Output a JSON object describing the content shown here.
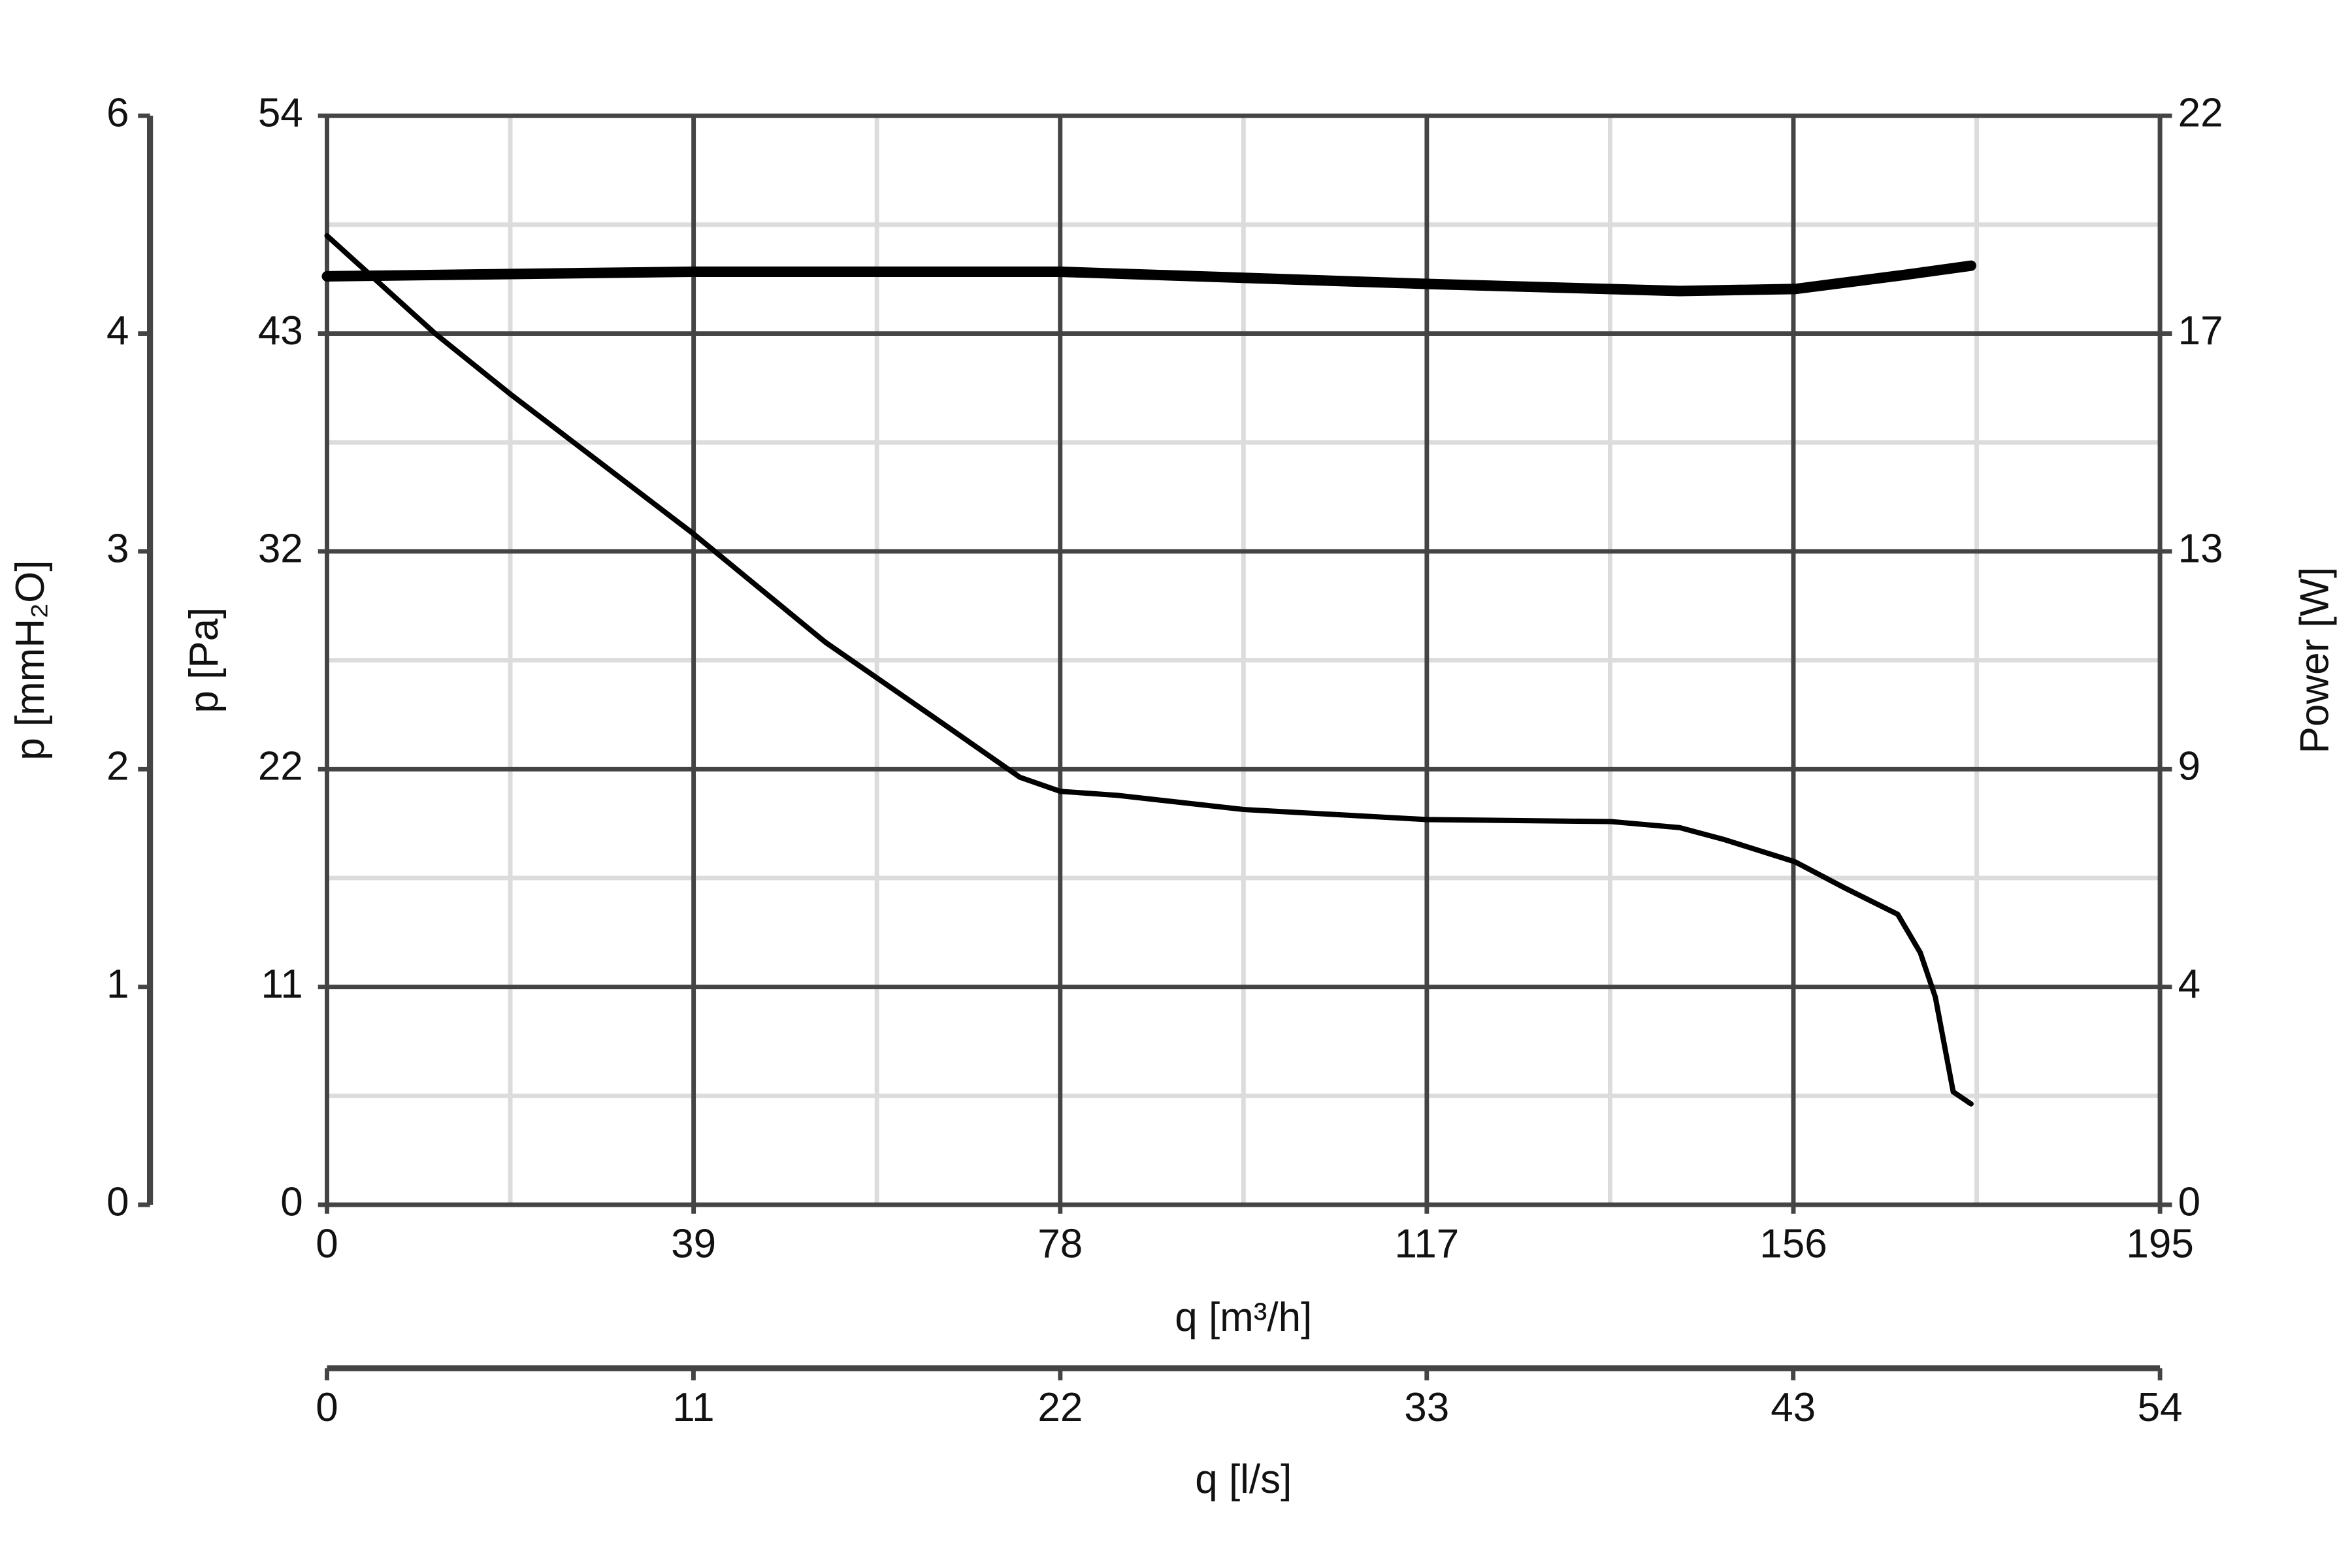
{
  "chart_data": {
    "type": "line",
    "xlabel": "q [m³/h]",
    "x2label": "q [l/s]",
    "ylabel": "p [Pa]",
    "y3label": "p [mmH₂O]",
    "y2label": "Power [W]",
    "xlim": [
      0,
      195
    ],
    "xticks": [
      0,
      39,
      78,
      117,
      156,
      195
    ],
    "x2lim": [
      0,
      54.17
    ],
    "x2ticks": [
      0,
      {
        "value": 10.83,
        "label": "11"
      },
      {
        "value": 21.67,
        "label": "22"
      },
      {
        "value": 32.5,
        "label": "33"
      },
      {
        "value": 43.33,
        "label": "43"
      },
      {
        "value": 54.17,
        "label": "54"
      }
    ],
    "ylim": [
      0,
      54
    ],
    "yticks": [
      0,
      {
        "value": 10.8,
        "label": "11"
      },
      {
        "value": 21.6,
        "label": "22"
      },
      {
        "value": 32.4,
        "label": "32"
      },
      {
        "value": 43.2,
        "label": "43"
      },
      54
    ],
    "y3lim": [
      0,
      5.5
    ],
    "y3ticks": [
      0,
      {
        "value": 1.1,
        "label": "1"
      },
      {
        "value": 2.2,
        "label": "2"
      },
      {
        "value": 3.3,
        "label": "3"
      },
      {
        "value": 4.4,
        "label": "4"
      },
      {
        "value": 5.5,
        "label": "6"
      }
    ],
    "y2lim": [
      0,
      21.5
    ],
    "y2ticks": [
      0,
      {
        "value": 4.3,
        "label": "4"
      },
      {
        "value": 8.6,
        "label": "9"
      },
      {
        "value": 12.9,
        "label": "13"
      },
      {
        "value": 17.2,
        "label": "17"
      },
      {
        "value": 21.5,
        "label": "22"
      }
    ],
    "xminor": [
      19.5,
      58.5,
      97.5,
      136.5,
      175.5
    ],
    "yminor": [
      5.4,
      16.2,
      27,
      37.8,
      48.6
    ],
    "grid": true,
    "series": [
      {
        "color": "#000000",
        "x": [
          0,
          11.5,
          19.5,
          38.9,
          53.0,
          65.7,
          73.7,
          78,
          84.1,
          97.5,
          117,
          136.6,
          143.9,
          148.7,
          156.2,
          161.5,
          167.1,
          169.5,
          171.1,
          173.0,
          174.9
        ],
        "values": [
          48.05,
          43.2,
          40.2,
          33.3,
          27.9,
          23.8,
          21.2,
          20.5,
          20.3,
          19.6,
          19.1,
          19.0,
          18.7,
          18.1,
          17.0,
          15.7,
          14.4,
          12.5,
          10.3,
          5.6,
          5.0
        ]
      },
      {
        "color": "#000000",
        "axis": "y2",
        "x": [
          0,
          38.9,
          78,
          117,
          143.9,
          156.2,
          167.9,
          174.9
        ],
        "values": [
          18.33,
          18.42,
          18.42,
          18.18,
          18.04,
          18.08,
          18.36,
          18.54
        ]
      }
    ]
  }
}
